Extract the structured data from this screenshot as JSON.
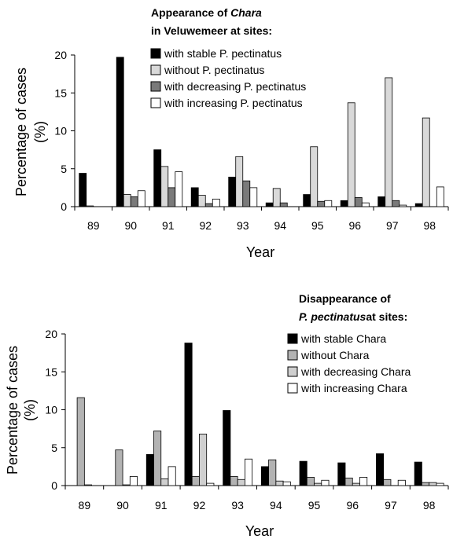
{
  "chart_data": [
    {
      "type": "bar",
      "title_line1": "Appearance of ",
      "title_italic": "Chara",
      "title_line2": "in Veluwemeer at sites:",
      "xlabel": "Year",
      "ylabel_line1": "Percentage of cases",
      "ylabel_line2": "(%)",
      "ylim": [
        0,
        20
      ],
      "yticks": [
        "0",
        "5",
        "10",
        "15",
        "20"
      ],
      "categories": [
        "89",
        "90",
        "91",
        "92",
        "93",
        "94",
        "95",
        "96",
        "97",
        "98"
      ],
      "series": [
        {
          "name": "with stable P. pectinatus",
          "color": "#000000",
          "values": [
            4.4,
            19.7,
            7.5,
            2.5,
            3.9,
            0.5,
            1.6,
            0.8,
            1.3,
            0.4
          ]
        },
        {
          "name": "without P. pectinatus",
          "color": "#d9d9d9",
          "values": [
            0.1,
            1.6,
            5.3,
            1.5,
            6.6,
            2.4,
            7.9,
            13.7,
            17.0,
            11.7
          ]
        },
        {
          "name": "with decreasing P. pectinatus",
          "color": "#7a7a7a",
          "values": [
            0,
            1.3,
            2.5,
            0.4,
            3.4,
            0.5,
            0.7,
            1.2,
            0.8,
            0
          ]
        },
        {
          "name": "with increasing P. pectinatus",
          "color": "#ffffff",
          "values": [
            0,
            2.1,
            4.6,
            1.0,
            2.5,
            0,
            0.8,
            0.5,
            0.2,
            2.6
          ]
        }
      ],
      "grid": false,
      "legend_position": "top-right"
    },
    {
      "type": "bar",
      "title_line1": "Disappearance of",
      "title_italic": "P. pectinatus",
      "title_line2": "at sites:",
      "xlabel": "Year",
      "ylabel_line1": "Percentage of cases",
      "ylabel_line2": "(%)",
      "ylim": [
        0,
        20
      ],
      "yticks": [
        "0",
        "5",
        "10",
        "15",
        "20"
      ],
      "categories": [
        "89",
        "90",
        "91",
        "92",
        "93",
        "94",
        "95",
        "96",
        "97",
        "98"
      ],
      "series": [
        {
          "name": "with stable Chara",
          "color": "#000000",
          "values": [
            0,
            0,
            4.1,
            18.8,
            9.9,
            2.5,
            3.2,
            3.0,
            4.2,
            3.1
          ]
        },
        {
          "name": "without Chara",
          "color": "#b3b3b3",
          "values": [
            11.6,
            4.7,
            7.2,
            1.2,
            1.2,
            3.4,
            1.1,
            1.0,
            0.8,
            0.4
          ]
        },
        {
          "name": "with decreasing Chara",
          "color": "#cfcfcf",
          "values": [
            0.1,
            0.1,
            0.9,
            6.8,
            0.8,
            0.6,
            0.3,
            0.3,
            0,
            0.4
          ]
        },
        {
          "name": "with increasing Chara",
          "color": "#ffffff",
          "values": [
            0,
            1.2,
            2.5,
            0.3,
            3.5,
            0.5,
            0.7,
            1.1,
            0.7,
            0.3
          ]
        }
      ],
      "grid": false,
      "legend_position": "top-right"
    }
  ]
}
